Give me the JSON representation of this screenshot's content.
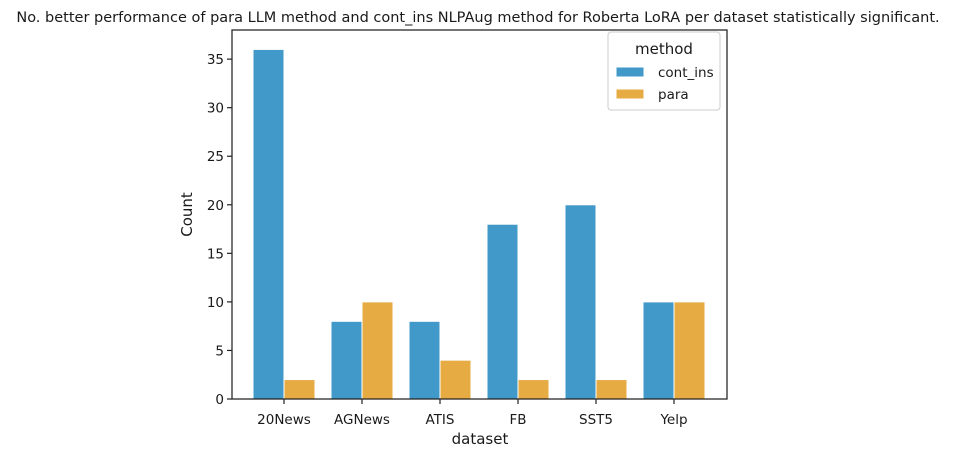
{
  "chart_data": {
    "type": "bar",
    "title": "No. better performance of para LLM method and cont_ins NLPAug method for Roberta LoRA per dataset statistically significant.",
    "xlabel": "dataset",
    "ylabel": "Count",
    "categories": [
      "20News",
      "AGNews",
      "ATIS",
      "FB",
      "SST5",
      "Yelp"
    ],
    "series": [
      {
        "name": "cont_ins",
        "color": "#4199c9",
        "values": [
          36,
          8,
          8,
          18,
          20,
          10
        ]
      },
      {
        "name": "para",
        "color": "#e6ab42",
        "values": [
          2,
          10,
          4,
          2,
          2,
          10
        ]
      }
    ],
    "ylim": [
      0,
      38
    ],
    "yticks": [
      0,
      5,
      10,
      15,
      20,
      25,
      30,
      35
    ],
    "legend": {
      "title": "method",
      "position": "top-right"
    },
    "grid": false
  }
}
